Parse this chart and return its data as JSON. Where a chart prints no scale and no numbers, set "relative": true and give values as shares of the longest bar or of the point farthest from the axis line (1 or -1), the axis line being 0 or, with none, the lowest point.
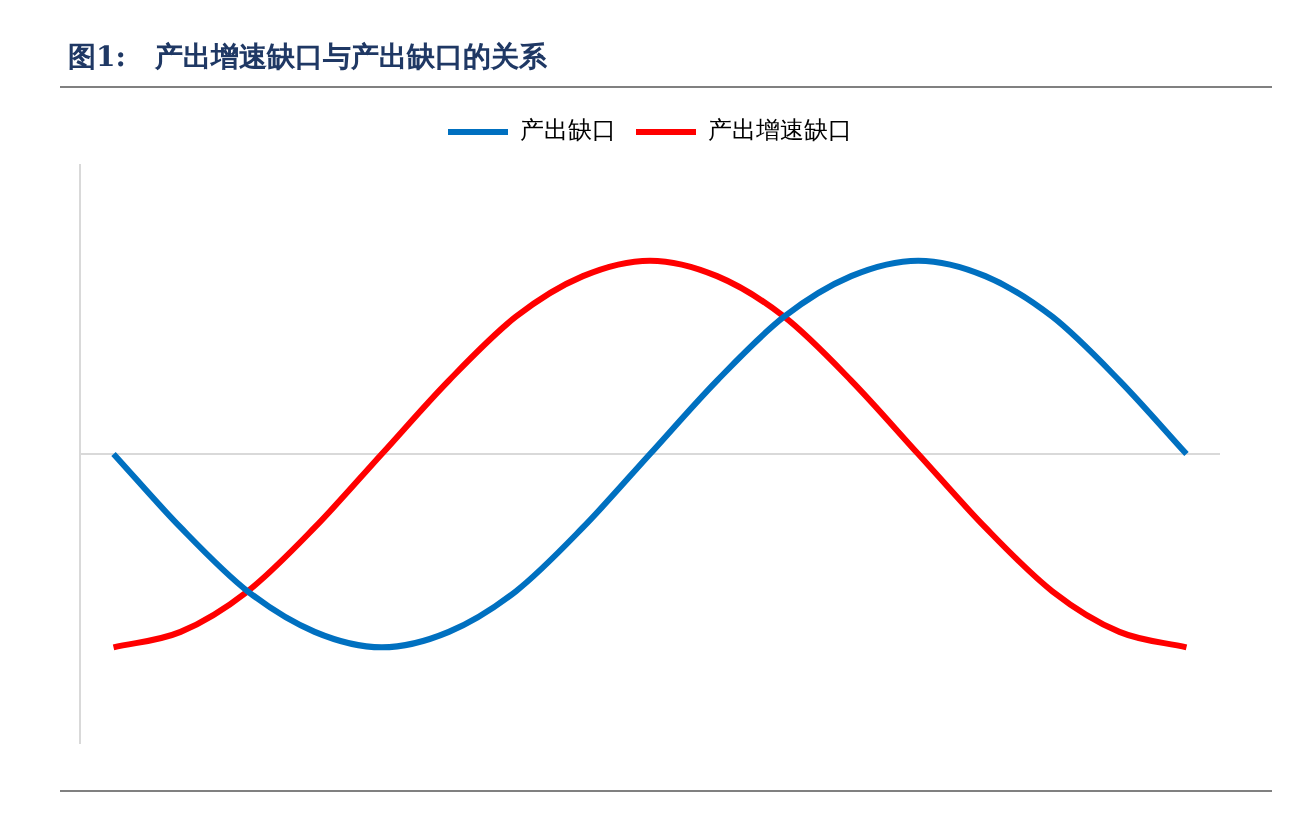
{
  "chart_data": {
    "type": "line",
    "title": "图1:   产出增速缺口与产出缺口的关系",
    "relative": true,
    "legend": "top",
    "marker": "none",
    "categories": [
      null,
      null,
      null,
      null,
      null,
      null,
      null,
      null,
      null,
      null,
      null,
      null,
      null,
      null,
      null,
      null,
      null
    ],
    "series": [
      {
        "name": "产出缺口",
        "color": "#0070c0",
        "values": [
          0,
          -0.38,
          -0.71,
          -0.92,
          -1,
          -0.92,
          -0.71,
          -0.38,
          0,
          0.38,
          0.71,
          0.92,
          1,
          0.92,
          0.71,
          0.38,
          0
        ]
      },
      {
        "name": "产出增速缺口",
        "color": "#ff0000",
        "values": [
          -1,
          -0.92,
          -0.71,
          -0.38,
          0,
          0.38,
          0.71,
          0.92,
          1,
          0.92,
          0.71,
          0.38,
          0,
          -0.38,
          -0.71,
          -0.92,
          -1
        ]
      }
    ]
  }
}
